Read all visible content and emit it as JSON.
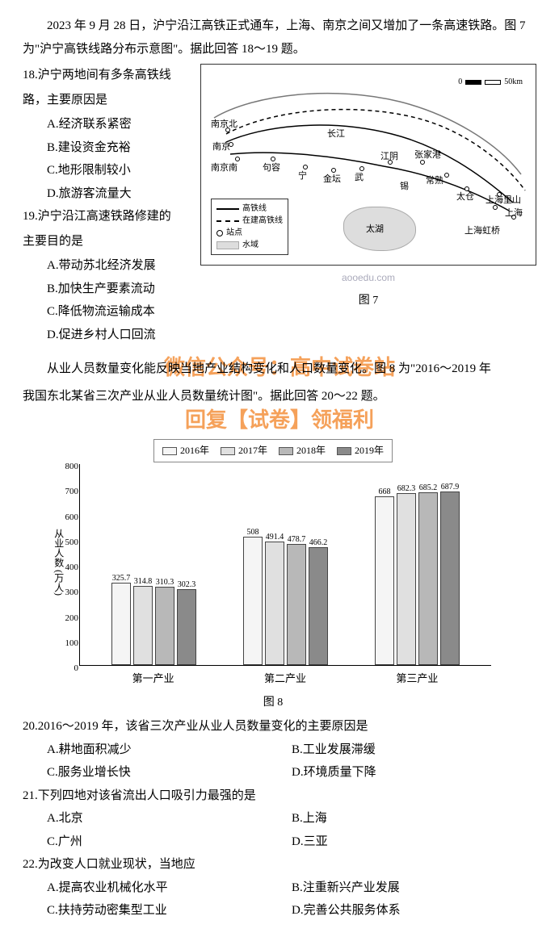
{
  "intro1": "2023 年 9 月 28 日，沪宁沿江高铁正式通车，上海、南京之间又增加了一条高速铁路。图 7 为\"沪宁高铁线路分布示意图\"。据此回答 18～19 题。",
  "q18": {
    "stem1": "18.沪宁两地间有多条高铁线",
    "stem2": "路，主要原因是",
    "A": "A.经济联系紧密",
    "B": "B.建设资金充裕",
    "C": "C.地形限制较小",
    "D": "D.旅游客流量大"
  },
  "q19": {
    "stem1": "19.沪宁沿江高速铁路修建的",
    "stem2": "主要目的是",
    "A": "A.带动苏北经济发展",
    "B": "B.加快生产要素流动",
    "C": "C.降低物流运输成本",
    "D": "D.促进乡村人口回流"
  },
  "fig7": {
    "caption": "图 7",
    "scale": {
      "zero": "0",
      "end": "50km"
    },
    "legend": {
      "rail": "高铁线",
      "building": "在建高铁线",
      "station": "站点",
      "water": "水域"
    },
    "labels": {
      "nanjingbei": "南京北",
      "nanjing": "南京",
      "nanjingnan": "南京南",
      "jurong": "句容",
      "changjiang": "长江",
      "ning": "宁",
      "jintan": "金坛",
      "wu": "武",
      "jiangyin": "江阴",
      "zhangjiagang": "张家港",
      "changshu": "常熟",
      "xi": "锡",
      "taicang": "太仓",
      "taihu": "太湖",
      "shanghaihongqiao": "上海虹桥",
      "shanghai": "上海",
      "kunshan": "上海里山"
    }
  },
  "site": "aooedu.com",
  "watermark": {
    "l1": "微信公众号：高中试卷站",
    "l2": "回复【试卷】领福利"
  },
  "intro2a": "从业人员数量变化能反映当地产业结构变化和人口数量变化。图 8 为\"2016～2019 年",
  "intro2b": "我国东北某省三次产业从业人员数量统计图\"。据此回答 20～22 题。",
  "chart": {
    "ylabel": "从业人数 (万人)",
    "ymax": 800,
    "ymin": 0,
    "ystep": 100,
    "legend": [
      "2016年",
      "2017年",
      "2018年",
      "2019年"
    ],
    "colors": [
      "#f5f5f5",
      "#e0e0e0",
      "#b8b8b8",
      "#8a8a8a"
    ],
    "groups": [
      {
        "name": "第一产业",
        "values": [
          325.7,
          314.8,
          310.3,
          302.3
        ]
      },
      {
        "name": "第二产业",
        "values": [
          508,
          491.4,
          478.7,
          466.2
        ]
      },
      {
        "name": "第三产业",
        "values": [
          668,
          682.3,
          685.2,
          687.9
        ]
      }
    ],
    "caption": "图 8"
  },
  "q20": {
    "stem": "20.2016～2019 年，该省三次产业从业人员数量变化的主要原因是",
    "A": "A.耕地面积减少",
    "B": "B.工业发展滞缓",
    "C": "C.服务业增长快",
    "D": "D.环境质量下降"
  },
  "q21": {
    "stem": "21.下列四地对该省流出人口吸引力最强的是",
    "A": "A.北京",
    "B": "B.上海",
    "C": "C.广州",
    "D": "D.三亚"
  },
  "q22": {
    "stem": "22.为改变人口就业现状，当地应",
    "A": "A.提高农业机械化水平",
    "B": "B.注重新兴产业发展",
    "C": "C.扶持劳动密集型工业",
    "D": "D.完善公共服务体系"
  }
}
